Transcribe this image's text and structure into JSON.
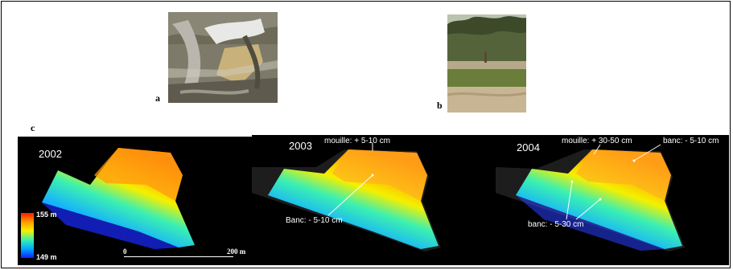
{
  "figure": {
    "label_a": "a",
    "label_b": "b",
    "label_c": "c"
  },
  "panels": [
    {
      "year": "2002"
    },
    {
      "year": "2003",
      "annotations": {
        "mouille": "mouille: + 5-10 cm",
        "banc": "Banc: - 5-10 cm"
      }
    },
    {
      "year": "2004",
      "annotations": {
        "mouille": "mouille: + 30-50 cm",
        "banc_top": "banc: - 5-10 cm",
        "banc_bottom": "banc: - 5-30 cm"
      }
    }
  ],
  "legend": {
    "max": "155 m",
    "min": "149 m"
  },
  "scale": {
    "start": "0",
    "end": "200 m"
  }
}
